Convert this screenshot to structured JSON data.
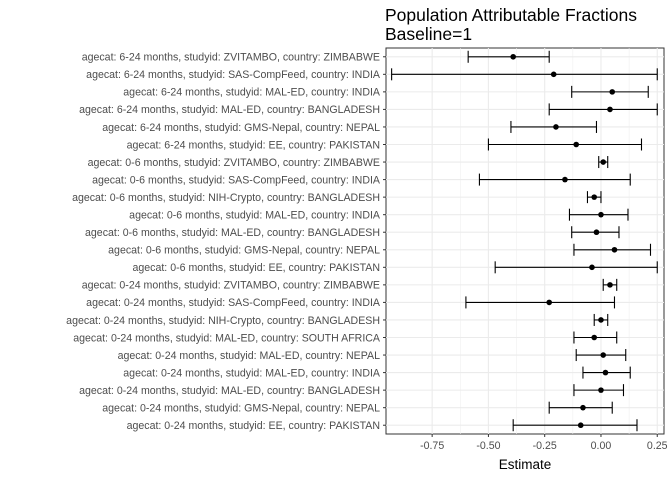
{
  "chart_data": {
    "type": "scatter",
    "title": "Population Attributable Fractions",
    "subtitle": "Baseline=1",
    "xlabel": "Estimate",
    "ylabel": "",
    "xlim": [
      -0.955,
      0.28
    ],
    "xticks": [
      -0.75,
      -0.5,
      -0.25,
      0.0,
      0.25
    ],
    "xtick_labels": [
      "-0.75",
      "-0.50",
      "-0.25",
      "0.00",
      "0.25"
    ],
    "grid": true,
    "legend": "none",
    "rows": [
      {
        "label": "agecat: 6-24 months, studyid: ZVITAMBO, country: ZIMBABWE",
        "estimate": -0.39,
        "lower": -0.59,
        "upper": -0.23
      },
      {
        "label": "agecat: 6-24 months, studyid: SAS-CompFeed, country: INDIA",
        "estimate": -0.21,
        "lower": -0.93,
        "upper": 0.25
      },
      {
        "label": "agecat: 6-24 months, studyid: MAL-ED, country: INDIA",
        "estimate": 0.05,
        "lower": -0.13,
        "upper": 0.21
      },
      {
        "label": "agecat: 6-24 months, studyid: MAL-ED, country: BANGLADESH",
        "estimate": 0.04,
        "lower": -0.23,
        "upper": 0.25
      },
      {
        "label": "agecat: 6-24 months, studyid: GMS-Nepal, country: NEPAL",
        "estimate": -0.2,
        "lower": -0.4,
        "upper": -0.02
      },
      {
        "label": "agecat: 6-24 months, studyid: EE, country: PAKISTAN",
        "estimate": -0.11,
        "lower": -0.5,
        "upper": 0.18
      },
      {
        "label": "agecat: 0-6 months, studyid: ZVITAMBO, country: ZIMBABWE",
        "estimate": 0.01,
        "lower": -0.01,
        "upper": 0.03
      },
      {
        "label": "agecat: 0-6 months, studyid: SAS-CompFeed, country: INDIA",
        "estimate": -0.16,
        "lower": -0.54,
        "upper": 0.13
      },
      {
        "label": "agecat: 0-6 months, studyid: NIH-Crypto, country: BANGLADESH",
        "estimate": -0.03,
        "lower": -0.06,
        "upper": 0.0
      },
      {
        "label": "agecat: 0-6 months, studyid: MAL-ED, country: INDIA",
        "estimate": 0.0,
        "lower": -0.14,
        "upper": 0.12
      },
      {
        "label": "agecat: 0-6 months, studyid: MAL-ED, country: BANGLADESH",
        "estimate": -0.02,
        "lower": -0.13,
        "upper": 0.08
      },
      {
        "label": "agecat: 0-6 months, studyid: GMS-Nepal, country: NEPAL",
        "estimate": 0.06,
        "lower": -0.12,
        "upper": 0.22
      },
      {
        "label": "agecat: 0-6 months, studyid: EE, country: PAKISTAN",
        "estimate": -0.04,
        "lower": -0.47,
        "upper": 0.25
      },
      {
        "label": "agecat: 0-24 months, studyid: ZVITAMBO, country: ZIMBABWE",
        "estimate": 0.04,
        "lower": 0.01,
        "upper": 0.07
      },
      {
        "label": "agecat: 0-24 months, studyid: SAS-CompFeed, country: INDIA",
        "estimate": -0.23,
        "lower": -0.6,
        "upper": 0.06
      },
      {
        "label": "agecat: 0-24 months, studyid: NIH-Crypto, country: BANGLADESH",
        "estimate": 0.0,
        "lower": -0.03,
        "upper": 0.03
      },
      {
        "label": "agecat: 0-24 months, studyid: MAL-ED, country: SOUTH AFRICA",
        "estimate": -0.03,
        "lower": -0.12,
        "upper": 0.07
      },
      {
        "label": "agecat: 0-24 months, studyid: MAL-ED, country: NEPAL",
        "estimate": 0.01,
        "lower": -0.11,
        "upper": 0.11
      },
      {
        "label": "agecat: 0-24 months, studyid: MAL-ED, country: INDIA",
        "estimate": 0.02,
        "lower": -0.08,
        "upper": 0.13
      },
      {
        "label": "agecat: 0-24 months, studyid: MAL-ED, country: BANGLADESH",
        "estimate": 0.0,
        "lower": -0.12,
        "upper": 0.1
      },
      {
        "label": "agecat: 0-24 months, studyid: GMS-Nepal, country: NEPAL",
        "estimate": -0.08,
        "lower": -0.23,
        "upper": 0.05
      },
      {
        "label": "agecat: 0-24 months, studyid: EE, country: PAKISTAN",
        "estimate": -0.09,
        "lower": -0.39,
        "upper": 0.16
      }
    ]
  }
}
